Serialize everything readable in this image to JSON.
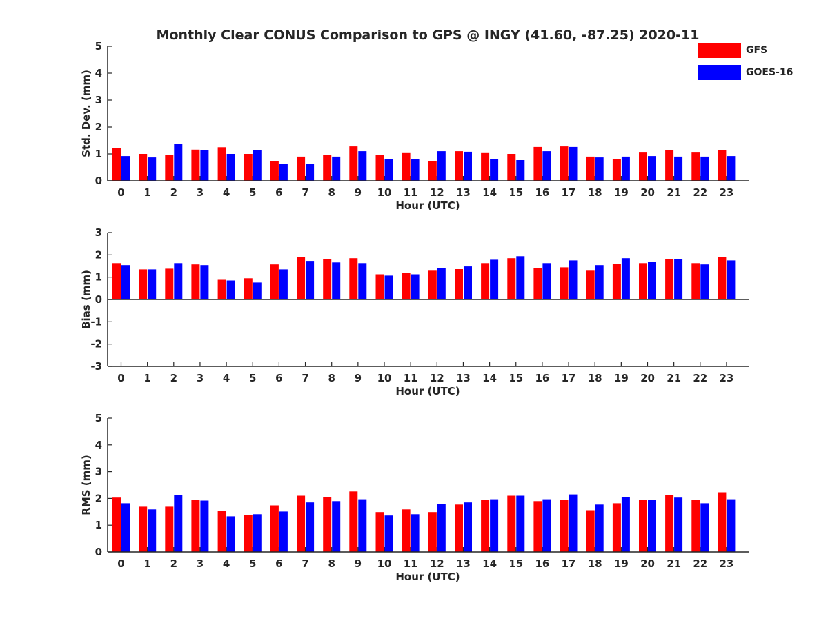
{
  "title": "Monthly Clear CONUS Comparison to GPS @ INGY (41.60, -87.25) 2020-11",
  "legend": {
    "gfs": "GFS",
    "goes": "GOES-16"
  },
  "colors": {
    "gfs": "#ff0000",
    "goes": "#0000ff"
  },
  "chart_data": [
    {
      "type": "bar",
      "title": "Monthly Clear CONUS Comparison to GPS @ INGY (41.60, -87.25) 2020-11",
      "xlabel": "Hour (UTC)",
      "ylabel": "Std. Dev. (mm)",
      "ylim": [
        0,
        5
      ],
      "yticks": [
        "0",
        "1",
        "2",
        "3",
        "4",
        "5"
      ],
      "categories": [
        "0",
        "1",
        "2",
        "3",
        "4",
        "5",
        "6",
        "7",
        "8",
        "9",
        "10",
        "11",
        "12",
        "13",
        "14",
        "15",
        "16",
        "17",
        "18",
        "19",
        "20",
        "21",
        "22",
        "23"
      ],
      "series": [
        {
          "name": "GFS",
          "values": [
            1.23,
            1.0,
            0.97,
            1.16,
            1.25,
            1.0,
            0.72,
            0.9,
            0.97,
            1.28,
            0.95,
            1.03,
            0.72,
            1.1,
            1.03,
            1.0,
            1.26,
            1.28,
            0.9,
            0.82,
            1.05,
            1.13,
            1.05,
            1.13
          ]
        },
        {
          "name": "GOES-16",
          "values": [
            0.92,
            0.87,
            1.38,
            1.13,
            1.0,
            1.15,
            0.62,
            0.64,
            0.9,
            1.1,
            0.82,
            0.82,
            1.1,
            1.08,
            0.82,
            0.77,
            1.1,
            1.26,
            0.87,
            0.9,
            0.92,
            0.9,
            0.9,
            0.92
          ]
        }
      ],
      "legend_position": "top-right",
      "grid": false
    },
    {
      "type": "bar",
      "xlabel": "Hour (UTC)",
      "ylabel": "Bias (mm)",
      "ylim": [
        -3,
        3
      ],
      "yticks": [
        "-3",
        "-2",
        "-1",
        "0",
        "1",
        "2",
        "3"
      ],
      "categories": [
        "0",
        "1",
        "2",
        "3",
        "4",
        "5",
        "6",
        "7",
        "8",
        "9",
        "10",
        "11",
        "12",
        "13",
        "14",
        "15",
        "16",
        "17",
        "18",
        "19",
        "20",
        "21",
        "22",
        "23"
      ],
      "series": [
        {
          "name": "GFS",
          "values": [
            1.63,
            1.35,
            1.38,
            1.57,
            0.88,
            0.95,
            1.57,
            1.9,
            1.8,
            1.85,
            1.13,
            1.2,
            1.29,
            1.36,
            1.63,
            1.85,
            1.41,
            1.44,
            1.29,
            1.6,
            1.63,
            1.8,
            1.63,
            1.9
          ]
        },
        {
          "name": "GOES-16",
          "values": [
            1.54,
            1.35,
            1.63,
            1.54,
            0.85,
            0.76,
            1.35,
            1.73,
            1.66,
            1.63,
            1.07,
            1.13,
            1.41,
            1.48,
            1.78,
            1.94,
            1.63,
            1.75,
            1.54,
            1.85,
            1.69,
            1.82,
            1.57,
            1.75
          ]
        }
      ],
      "grid": false
    },
    {
      "type": "bar",
      "xlabel": "Hour (UTC)",
      "ylabel": "RMS (mm)",
      "ylim": [
        0,
        5
      ],
      "yticks": [
        "0",
        "1",
        "2",
        "3",
        "4",
        "5"
      ],
      "categories": [
        "0",
        "1",
        "2",
        "3",
        "4",
        "5",
        "6",
        "7",
        "8",
        "9",
        "10",
        "11",
        "12",
        "13",
        "14",
        "15",
        "16",
        "17",
        "18",
        "19",
        "20",
        "21",
        "22",
        "23"
      ],
      "series": [
        {
          "name": "GFS",
          "values": [
            2.03,
            1.69,
            1.69,
            1.95,
            1.54,
            1.38,
            1.74,
            2.1,
            2.05,
            2.26,
            1.49,
            1.59,
            1.49,
            1.77,
            1.95,
            2.1,
            1.9,
            1.95,
            1.56,
            1.82,
            1.95,
            2.13,
            1.95,
            2.23
          ]
        },
        {
          "name": "GOES-16",
          "values": [
            1.82,
            1.59,
            2.13,
            1.92,
            1.33,
            1.41,
            1.51,
            1.85,
            1.9,
            1.97,
            1.36,
            1.41,
            1.79,
            1.85,
            1.97,
            2.1,
            1.97,
            2.15,
            1.77,
            2.05,
            1.95,
            2.03,
            1.82,
            1.97
          ]
        }
      ],
      "grid": false
    }
  ]
}
